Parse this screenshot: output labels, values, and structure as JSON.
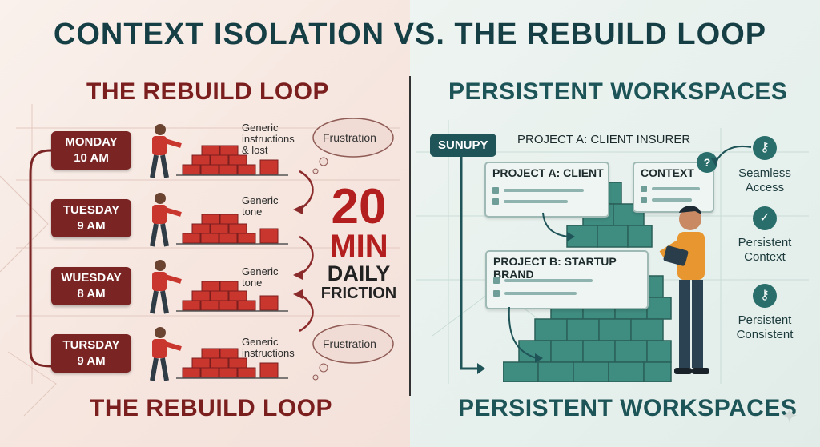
{
  "title": "CONTEXT ISOLATION VS. THE REBUILD LOOP",
  "left": {
    "title": "THE REBUILD LOOP",
    "footer": "THE REBUILD LOOP",
    "days": [
      {
        "day": "MONDAY",
        "time": "10 AM"
      },
      {
        "day": "TUESDAY",
        "time": "9 AM"
      },
      {
        "day": "WUESDAY",
        "time": "8 AM"
      },
      {
        "day": "TURSDAY",
        "time": "9 AM"
      }
    ],
    "notes": [
      {
        "lines": [
          "Generic",
          "instructions",
          "& lost"
        ]
      },
      {
        "lines": [
          "Generic",
          "tone"
        ]
      },
      {
        "lines": [
          "Generic",
          "tone"
        ]
      },
      {
        "lines": [
          "Generic",
          "instructions"
        ]
      }
    ],
    "clouds": [
      "Frustration",
      "Frustration"
    ],
    "friction": {
      "number": "20",
      "unit": "MIN",
      "line1": "DAILY",
      "line2": "FRICTION"
    }
  },
  "right": {
    "title": "PERSISTENT WORKSPACES",
    "footer": "PERSISTENT WORKSPACES",
    "tag": "SUNUPY",
    "header": "PROJECT A: CLIENT INSURER",
    "cards": [
      {
        "title": "PROJECT A: CLIENT"
      },
      {
        "title": "CONTEXT"
      },
      {
        "title": "PROJECT B: STARTUP BRAND"
      }
    ],
    "features": [
      {
        "icon": "key-icon",
        "label1": "Seamless",
        "label2": "Access"
      },
      {
        "icon": "check-icon",
        "label1": "Persistent",
        "label2": "Context"
      },
      {
        "icon": "key-icon",
        "label1": "Persistent",
        "label2": "Consistent"
      }
    ]
  },
  "colors": {
    "red": "#7a1e1e",
    "teal": "#1d5457",
    "brick": "#c8362d",
    "block": "#3f8c80"
  }
}
